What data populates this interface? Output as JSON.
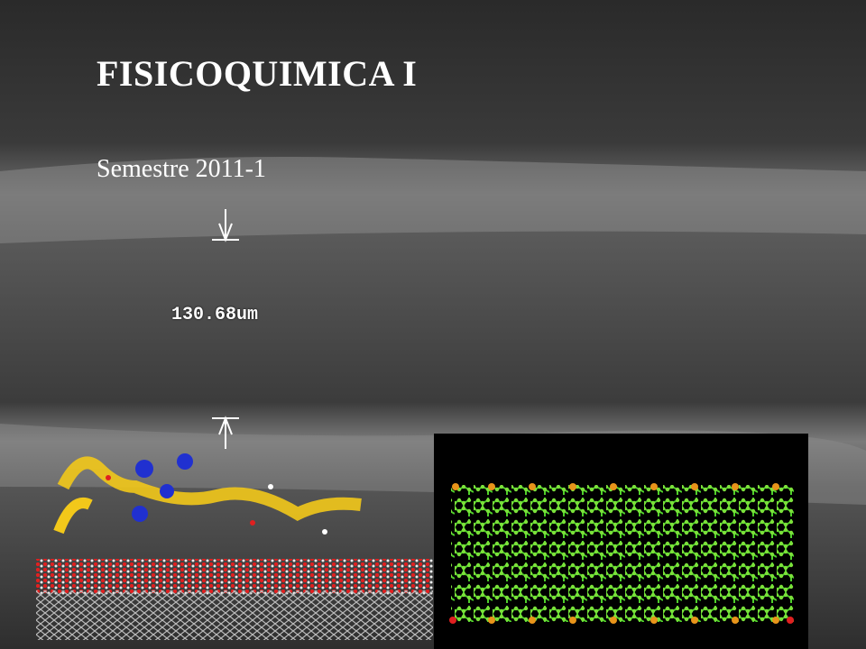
{
  "slide": {
    "title": "FISICOQUIMICA I",
    "subtitle": "Semestre 2011-1",
    "measurement": "130.68um"
  }
}
